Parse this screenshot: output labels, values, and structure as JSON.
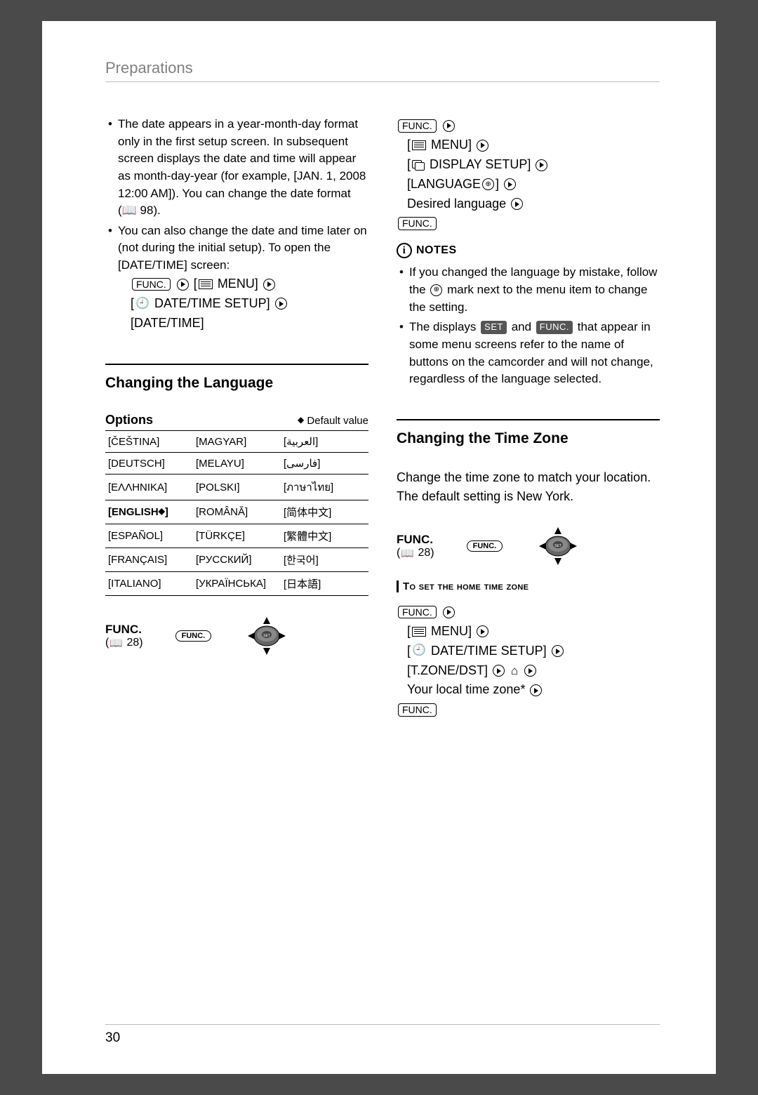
{
  "section_header": "Preparations",
  "page_number": "30",
  "colors": {
    "page_bg": "#ffffff",
    "outer_bg": "#4a4a4a",
    "header_text": "#808080",
    "rule": "#bbbbbb"
  },
  "left": {
    "bullets": {
      "b1": "The date appears in a year-month-day format only in the first setup screen. In subsequent screen displays the date and time will appear as month-day-year (for example, [JAN. 1, 2008 12:00 AM]). You can change the date format (📖 98).",
      "b2": "You can also change the date and time later on (not during the initial setup). To open the [DATE/TIME] screen:"
    },
    "procedure": {
      "menu": " MENU] ",
      "setup": " DATE/TIME SETUP] ",
      "final": "[DATE/TIME]"
    },
    "heading": "Changing the Language",
    "options_label": "Options",
    "default_label": " Default value",
    "lang_table": {
      "rows": [
        [
          "[ČEŠTINA]",
          "[MAGYAR]",
          "[العربية]"
        ],
        [
          "[DEUTSCH]",
          "[MELAYU]",
          "[فارسی]"
        ],
        [
          "[ΕΛΛΗΝΙΚΑ]",
          "[POLSKI]",
          "[ภาษาไทย]"
        ],
        [
          "[ENGLISH]",
          "[ROMÂNĂ]",
          "[简体中文]"
        ],
        [
          "[ESPAÑOL]",
          "[TÜRKÇE]",
          "[繁體中文]"
        ],
        [
          "[FRANÇAIS]",
          "[РУССКИЙ]",
          "[한국어]"
        ],
        [
          "[ITALIANO]",
          "[УКРАЇНСЬКА]",
          "[日本語]"
        ]
      ],
      "default_row": 3,
      "default_col": 0
    },
    "func_label": "FUNC.",
    "func_ref": "28",
    "func_oval": "FUNC."
  },
  "right": {
    "procedure1": {
      "menu": " MENU] ",
      "display": " DISPLAY SETUP] ",
      "language": "[LANGUAGE",
      "lang_end": "] ",
      "desired": "Desired language "
    },
    "notes_label": "NOTES",
    "notes": {
      "n1_a": "If you changed the language by mistake, follow the ",
      "n1_b": " mark next to the menu item to change the setting.",
      "n2_a": "The displays ",
      "n2_set": "SET",
      "n2_b": " and ",
      "n2_func": "FUNC.",
      "n2_c": " that appear in some menu screens refer to the name of buttons on the camcorder and will not change, regardless of the language selected."
    },
    "heading2": "Changing the Time Zone",
    "body2": "Change the time zone to match your location. The default setting is New York.",
    "func_label": "FUNC.",
    "func_ref": "28",
    "func_oval": "FUNC.",
    "subproc": "To set the home time zone",
    "procedure2": {
      "menu": " MENU] ",
      "setup": " DATE/TIME SETUP] ",
      "tzone": "[T.ZONE/DST] ",
      "local": "Your local time zone* "
    }
  }
}
